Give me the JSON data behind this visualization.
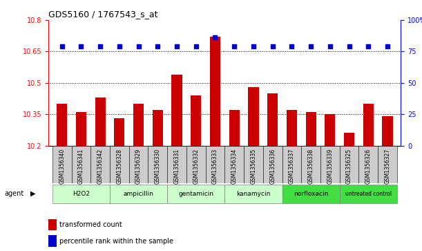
{
  "title": "GDS5160 / 1767543_s_at",
  "samples": [
    "GSM1356340",
    "GSM1356341",
    "GSM1356342",
    "GSM1356328",
    "GSM1356329",
    "GSM1356330",
    "GSM1356331",
    "GSM1356332",
    "GSM1356333",
    "GSM1356334",
    "GSM1356335",
    "GSM1356336",
    "GSM1356337",
    "GSM1356338",
    "GSM1356339",
    "GSM1356325",
    "GSM1356326",
    "GSM1356327"
  ],
  "bar_values": [
    10.4,
    10.36,
    10.43,
    10.33,
    10.4,
    10.37,
    10.54,
    10.44,
    10.72,
    10.37,
    10.48,
    10.45,
    10.37,
    10.36,
    10.35,
    10.26,
    10.4,
    10.34
  ],
  "percentile_values": [
    79,
    79,
    79,
    79,
    79,
    79,
    79,
    79,
    86,
    79,
    79,
    79,
    79,
    79,
    79,
    79,
    79,
    79
  ],
  "groups": [
    {
      "label": "H2O2",
      "start": 0,
      "end": 3
    },
    {
      "label": "ampicillin",
      "start": 3,
      "end": 6
    },
    {
      "label": "gentamicin",
      "start": 6,
      "end": 9
    },
    {
      "label": "kanamycin",
      "start": 9,
      "end": 12
    },
    {
      "label": "norfloxacin",
      "start": 12,
      "end": 15
    },
    {
      "label": "untreated control",
      "start": 15,
      "end": 18
    }
  ],
  "group_colors": [
    "#ccffcc",
    "#ccffcc",
    "#ccffcc",
    "#ccffcc",
    "#44dd44",
    "#44dd44"
  ],
  "ylim_left": [
    10.2,
    10.8
  ],
  "ylim_right": [
    0,
    100
  ],
  "yticks_left": [
    10.2,
    10.35,
    10.5,
    10.65,
    10.8
  ],
  "yticks_right": [
    0,
    25,
    50,
    75,
    100
  ],
  "ytick_labels_left": [
    "10.2",
    "10.35",
    "10.5",
    "10.65",
    "10.8"
  ],
  "ytick_labels_right": [
    "0",
    "25",
    "50",
    "75",
    "100%"
  ],
  "hlines": [
    10.35,
    10.5,
    10.65
  ],
  "bar_color": "#cc0000",
  "dot_color": "#0000cc",
  "bar_width": 0.55,
  "agent_label": "agent",
  "legend_bar_label": "transformed count",
  "legend_dot_label": "percentile rank within the sample",
  "tick_bg_color": "#cccccc"
}
